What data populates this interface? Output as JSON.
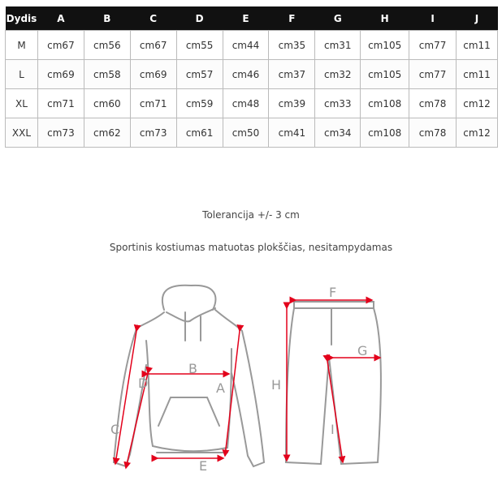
{
  "table": {
    "headers": [
      "Dydis",
      "A",
      "B",
      "C",
      "D",
      "E",
      "F",
      "G",
      "H",
      "I",
      "J"
    ],
    "rows": [
      [
        "M",
        "cm67",
        "cm56",
        "cm67",
        "cm55",
        "cm44",
        "cm35",
        "cm31",
        "cm105",
        "cm77",
        "cm11"
      ],
      [
        "L",
        "cm69",
        "cm58",
        "cm69",
        "cm57",
        "cm46",
        "cm37",
        "cm32",
        "cm105",
        "cm77",
        "cm11"
      ],
      [
        "XL",
        "cm71",
        "cm60",
        "cm71",
        "cm59",
        "cm48",
        "cm39",
        "cm33",
        "cm108",
        "cm78",
        "cm12"
      ],
      [
        "XXL",
        "cm73",
        "cm62",
        "cm73",
        "cm61",
        "cm50",
        "cm41",
        "cm34",
        "cm108",
        "cm78",
        "cm12"
      ]
    ]
  },
  "tolerance": "Tolerancija +/- 3 cm",
  "measure_note": "Sportinis kostiumas matuotas plokščias, nesitampydamas",
  "diagram": {
    "labels": {
      "A": "A",
      "B": "B",
      "C": "C",
      "D": "D",
      "E": "E",
      "F": "F",
      "G": "G",
      "H": "H",
      "I": "I"
    },
    "arrow_color": "#e3001b",
    "outline_color": "#999999"
  }
}
